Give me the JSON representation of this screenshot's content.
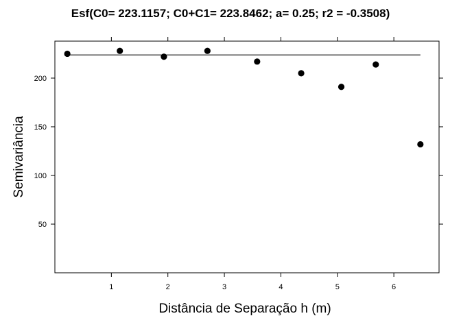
{
  "chart_data": {
    "type": "scatter",
    "title": "Esf(C0= 223.1157; C0+C1= 223.8462; a= 0.25; r2 = -0.3508)",
    "xlabel": "Distância de Separação h (m)",
    "ylabel": "Semivariância",
    "xlim": [
      0,
      6.8
    ],
    "ylim": [
      0,
      238
    ],
    "x_ticks": [
      1,
      2,
      3,
      4,
      5,
      6
    ],
    "y_ticks": [
      50,
      100,
      150,
      200
    ],
    "grid": false,
    "points": [
      {
        "x": 0.22,
        "y": 225
      },
      {
        "x": 1.15,
        "y": 228
      },
      {
        "x": 1.93,
        "y": 222
      },
      {
        "x": 2.7,
        "y": 228
      },
      {
        "x": 3.58,
        "y": 217
      },
      {
        "x": 4.36,
        "y": 205
      },
      {
        "x": 5.07,
        "y": 191
      },
      {
        "x": 5.68,
        "y": 214
      },
      {
        "x": 6.47,
        "y": 132
      }
    ],
    "model_line": {
      "x": [
        0.22,
        6.47
      ],
      "y": [
        223.85,
        223.85
      ]
    }
  }
}
